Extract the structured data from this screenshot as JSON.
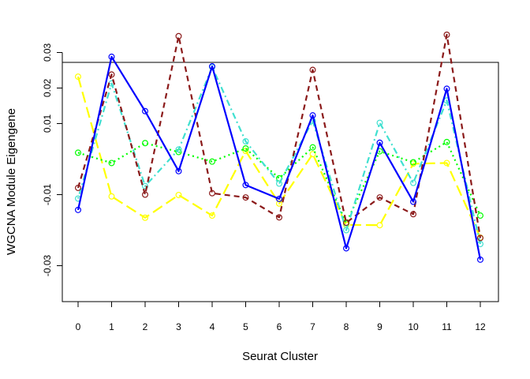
{
  "chart_data": {
    "type": "line",
    "xlabel": "Seurat Cluster",
    "ylabel": "WGCNA Module Eigengene",
    "x": [
      0,
      1,
      2,
      3,
      4,
      5,
      6,
      7,
      8,
      9,
      10,
      11,
      12
    ],
    "x_ticks": [
      "0",
      "1",
      "2",
      "3",
      "4",
      "5",
      "6",
      "7",
      "8",
      "9",
      "10",
      "11",
      "12"
    ],
    "y_ticks": [
      "-0.03",
      "-0.01",
      "0.01",
      "0.02",
      "0.03"
    ],
    "y_tick_values": [
      -0.03,
      -0.01,
      0.01,
      0.02,
      0.03
    ],
    "ylim": [
      -0.03,
      0.036
    ],
    "grid": false,
    "legend": false,
    "series": [
      {
        "color": "#ffff00",
        "dash": "long-dash",
        "values": [
          0.0232,
          -0.0105,
          -0.0165,
          -0.0101,
          -0.0159,
          0.0023,
          -0.0125,
          0.0014,
          -0.0185,
          -0.0186,
          -0.0013,
          -0.0011,
          -0.0221
        ]
      },
      {
        "color": "#00ff00",
        "dash": "dotted",
        "values": [
          0.0018,
          -0.0011,
          0.0045,
          0.002,
          -0.0007,
          0.003,
          -0.0054,
          0.0033,
          -0.018,
          0.0022,
          -0.0009,
          0.0048,
          -0.0159
        ]
      },
      {
        "color": "#40e0d0",
        "dash": "dash-dot",
        "values": [
          -0.0111,
          0.0213,
          -0.0076,
          0.0027,
          0.0259,
          0.005,
          -0.0069,
          0.0108,
          -0.02,
          0.0102,
          -0.0067,
          0.0165,
          -0.0239
        ]
      },
      {
        "color": "#8b1a1a",
        "dash": "dashed",
        "values": [
          -0.0081,
          0.0238,
          -0.01,
          0.0346,
          -0.0096,
          -0.0108,
          -0.0164,
          0.0251,
          -0.0179,
          -0.0108,
          -0.0155,
          0.035,
          -0.0222
        ]
      },
      {
        "color": "#0000ff",
        "dash": "solid",
        "values": [
          -0.0143,
          0.0288,
          0.0135,
          -0.0034,
          0.0261,
          -0.0073,
          -0.0112,
          0.0123,
          -0.0251,
          0.0046,
          -0.012,
          0.0198,
          -0.0283
        ]
      }
    ]
  }
}
